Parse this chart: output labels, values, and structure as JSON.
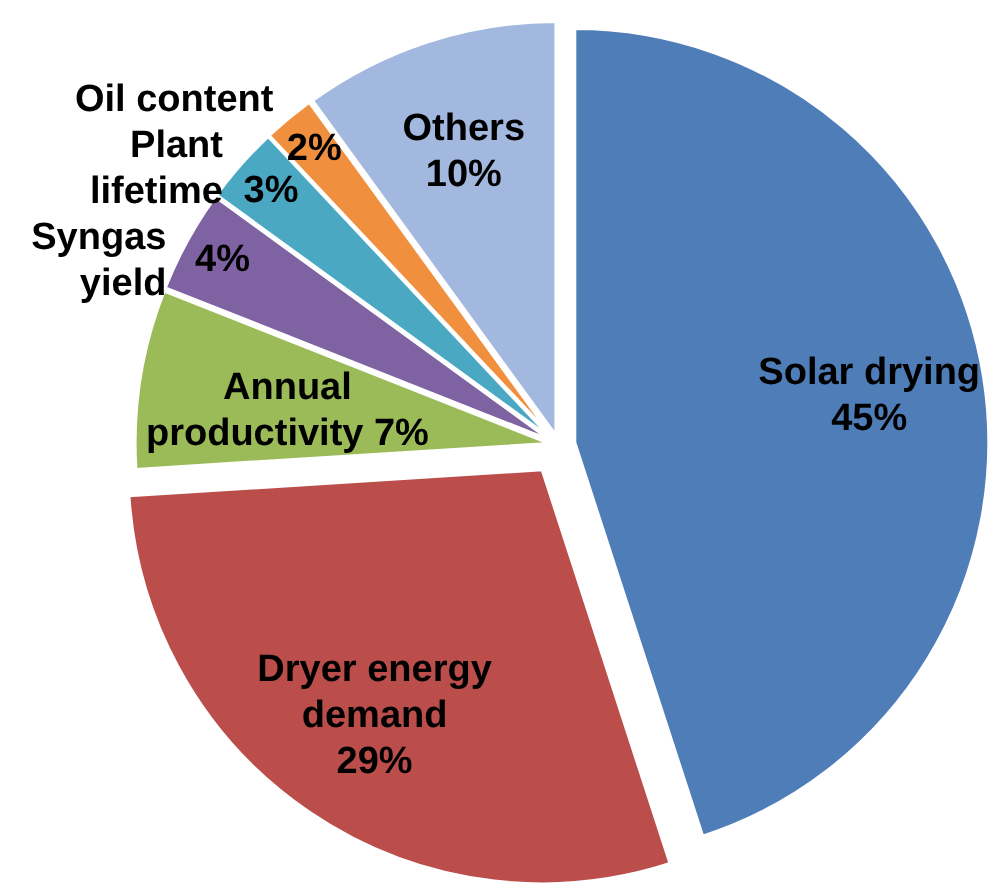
{
  "chart_data": {
    "type": "pie",
    "categories": [
      "Solar drying",
      "Dryer energy demand",
      "Annual productivity",
      "Syngas yield",
      "Plant lifetime",
      "Oil content",
      "Others"
    ],
    "values": [
      45,
      29,
      7,
      4,
      3,
      2,
      10
    ],
    "colors": [
      "#4f7db8",
      "#bb4e4b",
      "#9bbb59",
      "#7f62a1",
      "#4aa8c2",
      "#f0903f",
      "#a2b8de"
    ],
    "value_labels": [
      "45%",
      "29%",
      "7%",
      "4%",
      "3%",
      "2%",
      "10%"
    ]
  }
}
